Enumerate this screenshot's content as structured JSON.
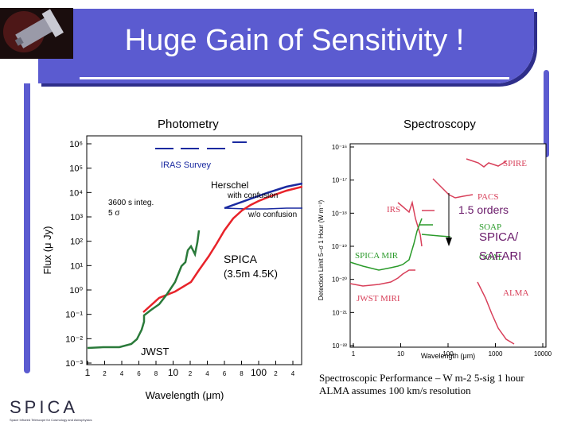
{
  "slide": {
    "title": "Huge Gain of Sensitivity !",
    "photometry_label": "Photometry",
    "spectroscopy_label": "Spectroscopy",
    "caption_line1": "Spectroscopic Performance – W m-2 5-sig 1 hour",
    "caption_line2": "ALMA assumes 100 km/s resolution",
    "logo_text": "SPICA",
    "logo_subtext": "Space Infrared Telescope for Cosmology and Astrophysics"
  },
  "colors": {
    "title_bg": "#5b5bd0",
    "spica_red": "#e8232a",
    "jwst_green": "#2a7a3a",
    "herschel_blue": "#1a2aa0",
    "spec_pink": "#d8405a",
    "spec_green": "#2a9a2a"
  },
  "chart_data": [
    {
      "type": "line",
      "xlabel": "Wavelength (μm)",
      "ylabel": "Flux (μ Jy)",
      "y_log": true,
      "x_log": true,
      "xlim": [
        1,
        500
      ],
      "ylim": [
        -3,
        6
      ],
      "y_tick_labels": [
        "10⁶",
        "10⁵",
        "10⁴",
        "10³",
        "10²",
        "10¹",
        "10⁰",
        "10⁻¹",
        "10⁻²",
        "10⁻³"
      ],
      "x_tick_labels": [
        "1",
        "2",
        "4",
        "6",
        "8",
        "10",
        "2",
        "4",
        "6",
        "8",
        "100",
        "2",
        "4"
      ],
      "annotations": {
        "iras": "IRAS Survey",
        "herschel": "Herschel",
        "with_confusion": "with confusion",
        "wo_confusion": "w/o confusion",
        "integ1": "3600 s integ.",
        "integ2": "5 σ",
        "spica1": "SPICA",
        "spica2": "(3.5m 4.5K)",
        "jwst": "JWST"
      }
    },
    {
      "type": "line",
      "xlabel": "Wavelength (μm)",
      "ylabel": "Detection Limit 5−σ 1 Hour (W m⁻²)",
      "x_log": true,
      "y_log": true,
      "xlim": [
        1,
        10000
      ],
      "ylim": [
        -22,
        -16
      ],
      "y_tick_labels": [
        "10⁻¹⁶",
        "10⁻¹⁷",
        "10⁻¹⁸",
        "10⁻¹⁹",
        "10⁻²⁰",
        "10⁻²¹",
        "10⁻²²"
      ],
      "x_tick_labels": [
        "1",
        "10",
        "100",
        "1000",
        "10000"
      ],
      "annotations": {
        "spire": "SPIRE",
        "pacs": "PACS",
        "irs": "IRS",
        "soap": "SOAP",
        "goal": "GOAL",
        "spica_mir": "SPICA MIR",
        "jwst_miri": "JWST MIRI",
        "alma": "ALMA",
        "orders": "1.5 orders",
        "safari": "SPICA/ SAFARI"
      }
    }
  ]
}
